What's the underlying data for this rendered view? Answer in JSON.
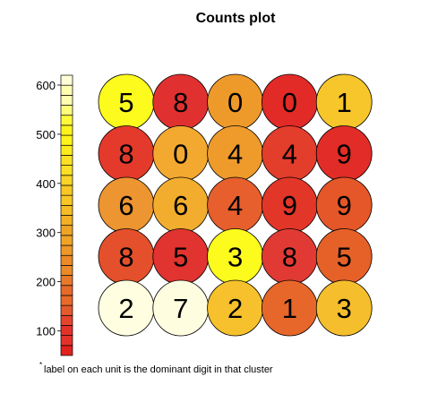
{
  "chart_data": {
    "type": "heatmap",
    "title": "Counts plot",
    "grid": {
      "rows": 5,
      "cols": 5
    },
    "colorbar": {
      "ticks": [
        100,
        200,
        300,
        400,
        500,
        600
      ],
      "range": [
        50,
        620
      ],
      "segments": 28,
      "colors": [
        "#e2211f",
        "#e4322a",
        "#e5452d",
        "#e55a2c",
        "#e86a2a",
        "#e9792a",
        "#ec8a27",
        "#ee9827",
        "#f0a426",
        "#f2b024",
        "#f5bc24",
        "#f7c724",
        "#f9d427",
        "#fbe024",
        "#fdeb20",
        "#fff31c",
        "#fffb3a",
        "#fffd7a",
        "#fffdb0",
        "#fffed8"
      ]
    },
    "units": [
      [
        {
          "label": "5",
          "count": 590,
          "color": "#fdfb1e"
        },
        {
          "label": "8",
          "count": 110,
          "color": "#e03130"
        },
        {
          "label": "0",
          "count": 390,
          "color": "#ee9a2a"
        },
        {
          "label": "0",
          "count": 80,
          "color": "#e22a27"
        },
        {
          "label": "1",
          "count": 470,
          "color": "#f6c62b"
        }
      ],
      [
        {
          "label": "8",
          "count": 130,
          "color": "#e33a2c"
        },
        {
          "label": "0",
          "count": 430,
          "color": "#f3a830"
        },
        {
          "label": "4",
          "count": 400,
          "color": "#ee9b2c"
        },
        {
          "label": "4",
          "count": 140,
          "color": "#e33d2c"
        },
        {
          "label": "9",
          "count": 90,
          "color": "#e12c27"
        }
      ],
      [
        {
          "label": "6",
          "count": 380,
          "color": "#ec9531"
        },
        {
          "label": "6",
          "count": 440,
          "color": "#f2ad2e"
        },
        {
          "label": "4",
          "count": 230,
          "color": "#e65f2c"
        },
        {
          "label": "9",
          "count": 100,
          "color": "#e13628"
        },
        {
          "label": "9",
          "count": 200,
          "color": "#e55628"
        }
      ],
      [
        {
          "label": "8",
          "count": 190,
          "color": "#e4502c"
        },
        {
          "label": "5",
          "count": 120,
          "color": "#e1332f"
        },
        {
          "label": "3",
          "count": 590,
          "color": "#fdfb1e"
        },
        {
          "label": "8",
          "count": 110,
          "color": "#e13a34"
        },
        {
          "label": "5",
          "count": 240,
          "color": "#e66128"
        }
      ],
      [
        {
          "label": "2",
          "count": 650,
          "color": "#fffee0"
        },
        {
          "label": "7",
          "count": 650,
          "color": "#fffde0"
        },
        {
          "label": "2",
          "count": 460,
          "color": "#f6c12c"
        },
        {
          "label": "1",
          "count": 250,
          "color": "#e7672b"
        },
        {
          "label": "3",
          "count": 460,
          "color": "#f5be2c"
        }
      ]
    ],
    "footnote": {
      "marker": "*",
      "text": "label on each unit is the dominant digit in that cluster"
    }
  }
}
